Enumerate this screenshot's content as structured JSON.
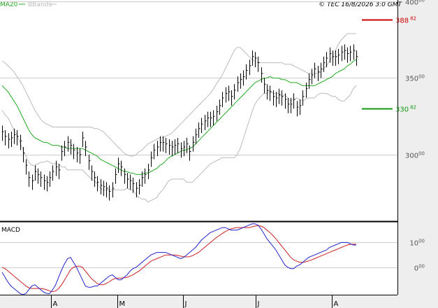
{
  "header": {
    "legend_ma": "MA20",
    "legend_bb": "BBands",
    "copyright": "© TEC 16/8/2026 3:0 GMT"
  },
  "colors": {
    "ma": "#22aa22",
    "bb": "#bbbbbb",
    "price": "#000000",
    "resistance": "#cc0000",
    "support": "#119911",
    "macd": "#2222cc",
    "signal": "#cc2222",
    "grid": "#cccccc",
    "panel": "#eeeeee"
  },
  "chart_data": [
    {
      "type": "ohlc",
      "y_ticks": [
        {
          "value": 400,
          "main": "400",
          "sup": "00"
        },
        {
          "value": 350,
          "main": "350",
          "sup": "00"
        },
        {
          "value": 300,
          "main": "300",
          "sup": "00"
        }
      ],
      "ylim": [
        257,
        395
      ],
      "x_labels": [
        "A",
        "M",
        "J",
        "J",
        "A"
      ],
      "x_label_positions": [
        5,
        38,
        61,
        84,
        109
      ],
      "n": 120,
      "close": [
        315,
        312,
        310,
        311,
        313,
        312,
        309,
        301,
        293,
        285,
        283,
        289,
        287,
        285,
        283,
        282,
        285,
        289,
        292,
        290,
        302,
        305,
        308,
        306,
        303,
        301,
        300,
        311,
        305,
        296,
        289,
        285,
        282,
        280,
        279,
        278,
        276,
        278,
        287,
        294,
        292,
        287,
        284,
        283,
        281,
        278,
        280,
        285,
        287,
        290,
        298,
        303,
        305,
        308,
        308,
        307,
        306,
        305,
        306,
        307,
        304,
        305,
        307,
        302,
        308,
        313,
        317,
        320,
        322,
        324,
        324,
        325,
        328,
        332,
        337,
        340,
        341,
        338,
        342,
        347,
        349,
        351,
        355,
        358,
        364,
        363,
        360,
        353,
        346,
        342,
        341,
        338,
        337,
        339,
        338,
        336,
        333,
        333,
        336,
        331,
        332,
        338,
        343,
        349,
        352,
        356,
        354,
        356,
        360,
        363,
        366,
        364,
        364,
        365,
        367,
        368,
        366,
        367,
        368,
        364
      ],
      "high": [
        319,
        316,
        314,
        315,
        317,
        316,
        313,
        305,
        297,
        289,
        287,
        293,
        291,
        289,
        287,
        286,
        289,
        293,
        296,
        294,
        306,
        309,
        312,
        310,
        307,
        305,
        304,
        315,
        309,
        300,
        293,
        289,
        286,
        284,
        283,
        282,
        280,
        282,
        291,
        298,
        296,
        291,
        288,
        287,
        285,
        282,
        284,
        289,
        291,
        294,
        302,
        307,
        309,
        312,
        312,
        311,
        310,
        309,
        310,
        311,
        308,
        309,
        311,
        306,
        312,
        317,
        321,
        324,
        326,
        328,
        328,
        329,
        332,
        336,
        341,
        344,
        345,
        342,
        346,
        351,
        353,
        355,
        359,
        362,
        368,
        367,
        364,
        357,
        350,
        346,
        345,
        342,
        341,
        343,
        342,
        340,
        337,
        337,
        340,
        335,
        336,
        342,
        347,
        353,
        356,
        360,
        358,
        360,
        364,
        367,
        370,
        368,
        368,
        369,
        371,
        372,
        370,
        371,
        372,
        368
      ],
      "low": [
        309,
        306,
        304,
        305,
        307,
        306,
        303,
        295,
        287,
        279,
        277,
        283,
        281,
        279,
        277,
        276,
        279,
        283,
        286,
        284,
        296,
        299,
        302,
        300,
        297,
        295,
        294,
        305,
        299,
        290,
        283,
        279,
        276,
        274,
        273,
        272,
        270,
        272,
        281,
        288,
        286,
        281,
        278,
        277,
        275,
        272,
        274,
        279,
        281,
        284,
        292,
        297,
        299,
        302,
        302,
        301,
        300,
        299,
        300,
        301,
        298,
        299,
        301,
        296,
        302,
        307,
        311,
        314,
        316,
        318,
        318,
        319,
        322,
        326,
        331,
        334,
        335,
        332,
        336,
        341,
        343,
        345,
        349,
        352,
        358,
        357,
        354,
        347,
        340,
        336,
        335,
        332,
        331,
        333,
        332,
        330,
        327,
        327,
        330,
        325,
        326,
        332,
        337,
        343,
        346,
        350,
        348,
        350,
        354,
        357,
        360,
        358,
        358,
        359,
        361,
        362,
        360,
        361,
        362,
        358
      ],
      "ma20": [
        345,
        343,
        341,
        338,
        335,
        332,
        328,
        324,
        320,
        316,
        313,
        311,
        310,
        309,
        308,
        308,
        307,
        306,
        306,
        306,
        305,
        305,
        304,
        304,
        304,
        304,
        304,
        304,
        303,
        302,
        301,
        300,
        299,
        297,
        296,
        295,
        294,
        293,
        292,
        291,
        290,
        289,
        289,
        288,
        288,
        287,
        287,
        287,
        288,
        288,
        289,
        290,
        291,
        293,
        294,
        296,
        298,
        299,
        300,
        301,
        302,
        303,
        303,
        304,
        305,
        307,
        309,
        311,
        313,
        315,
        317,
        319,
        321,
        323,
        325,
        327,
        329,
        331,
        333,
        335,
        337,
        339,
        341,
        343,
        345,
        347,
        348,
        349,
        350,
        350,
        351,
        350,
        350,
        350,
        349,
        349,
        348,
        347,
        347,
        347,
        346,
        345,
        345,
        345,
        345,
        345,
        346,
        347,
        348,
        349,
        350,
        351,
        353,
        354,
        355,
        356,
        358,
        359,
        361,
        362
      ],
      "bb_upper": [
        361,
        360,
        358,
        356,
        354,
        351,
        348,
        345,
        341,
        337,
        333,
        329,
        326,
        323,
        321,
        320,
        319,
        318,
        318,
        318,
        318,
        318,
        318,
        318,
        318,
        318,
        318,
        318,
        318,
        318,
        318,
        317,
        317,
        316,
        315,
        313,
        311,
        309,
        307,
        305,
        303,
        301,
        300,
        299,
        299,
        300,
        302,
        303,
        305,
        307,
        308,
        309,
        310,
        311,
        311,
        312,
        313,
        314,
        316,
        318,
        320,
        322,
        324,
        326,
        328,
        330,
        332,
        334,
        336,
        338,
        340,
        343,
        346,
        349,
        352,
        356,
        360,
        364,
        368,
        370,
        370,
        368,
        366,
        364,
        362,
        361,
        360,
        360,
        360,
        360,
        360,
        360,
        360,
        360,
        360,
        359,
        359,
        359,
        358,
        357,
        356,
        355,
        354,
        353,
        353,
        353,
        353,
        354,
        356,
        358,
        361,
        364,
        368,
        372,
        375,
        377,
        379,
        379,
        379,
        379
      ],
      "bb_lower": [
        329,
        326,
        324,
        320,
        316,
        313,
        308,
        303,
        299,
        295,
        293,
        293,
        294,
        295,
        295,
        296,
        295,
        294,
        294,
        294,
        292,
        292,
        290,
        290,
        290,
        290,
        290,
        290,
        288,
        286,
        284,
        283,
        281,
        278,
        277,
        277,
        277,
        277,
        277,
        277,
        277,
        277,
        278,
        277,
        277,
        274,
        272,
        271,
        271,
        269,
        270,
        271,
        272,
        275,
        277,
        280,
        283,
        284,
        284,
        284,
        284,
        284,
        282,
        282,
        282,
        284,
        286,
        288,
        290,
        292,
        294,
        295,
        296,
        297,
        298,
        298,
        298,
        298,
        298,
        300,
        304,
        310,
        316,
        322,
        328,
        333,
        336,
        338,
        340,
        340,
        342,
        340,
        340,
        340,
        338,
        339,
        337,
        335,
        336,
        337,
        336,
        335,
        336,
        337,
        337,
        337,
        339,
        340,
        340,
        340,
        339,
        338,
        338,
        336,
        335,
        335,
        337,
        339,
        343,
        345
      ]
    },
    {
      "type": "line",
      "title": "MACD",
      "y_ticks": [
        {
          "value": 10,
          "main": "10",
          "sup": "00"
        },
        {
          "value": 0,
          "main": "0",
          "sup": "00"
        }
      ],
      "ylim": [
        -11,
        18
      ],
      "series": [
        {
          "values": [
            -2,
            -4,
            -6,
            -7.5,
            -8.5,
            -9.5,
            -10.5,
            -11,
            -10.5,
            -9,
            -7.5,
            -7,
            -8,
            -9,
            -10,
            -10.5,
            -10.5,
            -9,
            -7,
            -4,
            -1,
            1.5,
            3.5,
            4,
            2,
            0,
            -2.5,
            -5,
            -7.5,
            -8,
            -8,
            -7.5,
            -7.5,
            -6.5,
            -5.5,
            -4.5,
            -3.5,
            -3,
            -4,
            -5,
            -5,
            -4,
            -3,
            -1.5,
            -0.5,
            0,
            1,
            2,
            3,
            4,
            5,
            5.5,
            6,
            6,
            6,
            6,
            5.5,
            5,
            4.5,
            4,
            3.5,
            4,
            5,
            6,
            7,
            8,
            9.5,
            11,
            12,
            13,
            14,
            14.5,
            15,
            15.5,
            16,
            16,
            15.5,
            15,
            15,
            15,
            15.5,
            16,
            16.5,
            17,
            17.5,
            17.5,
            17,
            15.5,
            13.5,
            11.5,
            10,
            8.5,
            7,
            5,
            3,
            1,
            0,
            -0.5,
            -0.5,
            0.5,
            1,
            2,
            3,
            4,
            4.5,
            5,
            5.5,
            6,
            6.5,
            7,
            8,
            8.5,
            9,
            9.5,
            10,
            10,
            10,
            9.5,
            9,
            9
          ]
        },
        {
          "values": [
            0,
            -0.5,
            -1.5,
            -2.5,
            -3.5,
            -4.5,
            -5.5,
            -6.5,
            -7.5,
            -8.2,
            -8.5,
            -8.5,
            -8.5,
            -8.5,
            -8.7,
            -9,
            -9.5,
            -9.8,
            -9.5,
            -8.5,
            -7,
            -5,
            -3,
            -1,
            0,
            0.5,
            0.5,
            0,
            -1.5,
            -3,
            -4.5,
            -5.5,
            -6.5,
            -7,
            -7,
            -6.5,
            -5.8,
            -5,
            -4.5,
            -4.3,
            -4.3,
            -4.2,
            -4,
            -3.5,
            -3,
            -2.2,
            -1.5,
            -0.5,
            0.5,
            1.5,
            2.5,
            3,
            3.5,
            4,
            4.5,
            5,
            5,
            5,
            5,
            4.8,
            4.5,
            4.3,
            4.2,
            4.3,
            4.7,
            5.3,
            6,
            7,
            8,
            9,
            10,
            11,
            12,
            12.8,
            13.6,
            14.4,
            15,
            15.5,
            15.8,
            16,
            16,
            16,
            16,
            16,
            16.3,
            16.6,
            16.8,
            16.6,
            16,
            15,
            14,
            12.8,
            11.5,
            10,
            8.5,
            7,
            5.5,
            4,
            3,
            2.5,
            2,
            2,
            2.2,
            2.6,
            3,
            3.5,
            4,
            4.5,
            5,
            5.5,
            6,
            6.5,
            7,
            7.5,
            8,
            8.5,
            9,
            9.2,
            9.3,
            9.3
          ]
        }
      ]
    }
  ],
  "levels": {
    "resistance": {
      "value": 388,
      "main": "388",
      "sup": "82"
    },
    "support": {
      "value": 330,
      "main": "330",
      "sup": "82"
    }
  }
}
